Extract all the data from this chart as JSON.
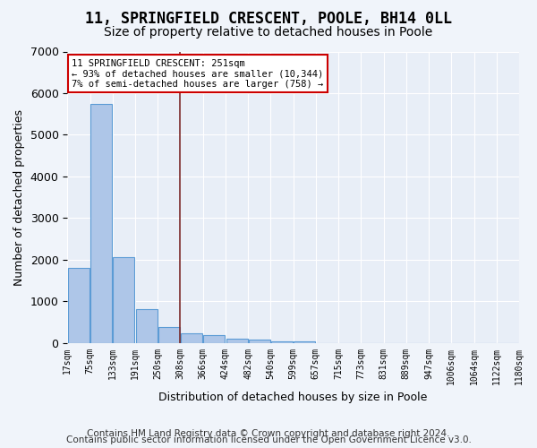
{
  "title": "11, SPRINGFIELD CRESCENT, POOLE, BH14 0LL",
  "subtitle": "Size of property relative to detached houses in Poole",
  "xlabel": "Distribution of detached houses by size in Poole",
  "ylabel": "Number of detached properties",
  "bar_color": "#aec6e8",
  "bar_edge_color": "#5b9bd5",
  "vline_color": "#7b2b2b",
  "annotation_lines": [
    "11 SPRINGFIELD CRESCENT: 251sqm",
    "← 93% of detached houses are smaller (10,344)",
    "7% of semi-detached houses are larger (758) →"
  ],
  "annotation_box_color": "#ffffff",
  "annotation_box_edge": "#cc0000",
  "tick_labels": [
    "17sqm",
    "75sqm",
    "133sqm",
    "191sqm",
    "250sqm",
    "308sqm",
    "366sqm",
    "424sqm",
    "482sqm",
    "540sqm",
    "599sqm",
    "657sqm",
    "715sqm",
    "773sqm",
    "831sqm",
    "889sqm",
    "947sqm",
    "1006sqm",
    "1064sqm",
    "1122sqm",
    "1180sqm"
  ],
  "values": [
    1800,
    5750,
    2050,
    820,
    370,
    230,
    190,
    100,
    80,
    40,
    30,
    0,
    0,
    0,
    0,
    0,
    0,
    0,
    0,
    0
  ],
  "ylim": [
    0,
    7000
  ],
  "yticks": [
    0,
    1000,
    2000,
    3000,
    4000,
    5000,
    6000,
    7000
  ],
  "plot_bg_color": "#e8eef7",
  "fig_bg_color": "#f0f4fa",
  "grid_color": "#ffffff",
  "vline_bar_index": 4,
  "footer1": "Contains HM Land Registry data © Crown copyright and database right 2024.",
  "footer2": "Contains public sector information licensed under the Open Government Licence v3.0.",
  "title_fontsize": 12,
  "subtitle_fontsize": 10,
  "footer_fontsize": 7.5
}
